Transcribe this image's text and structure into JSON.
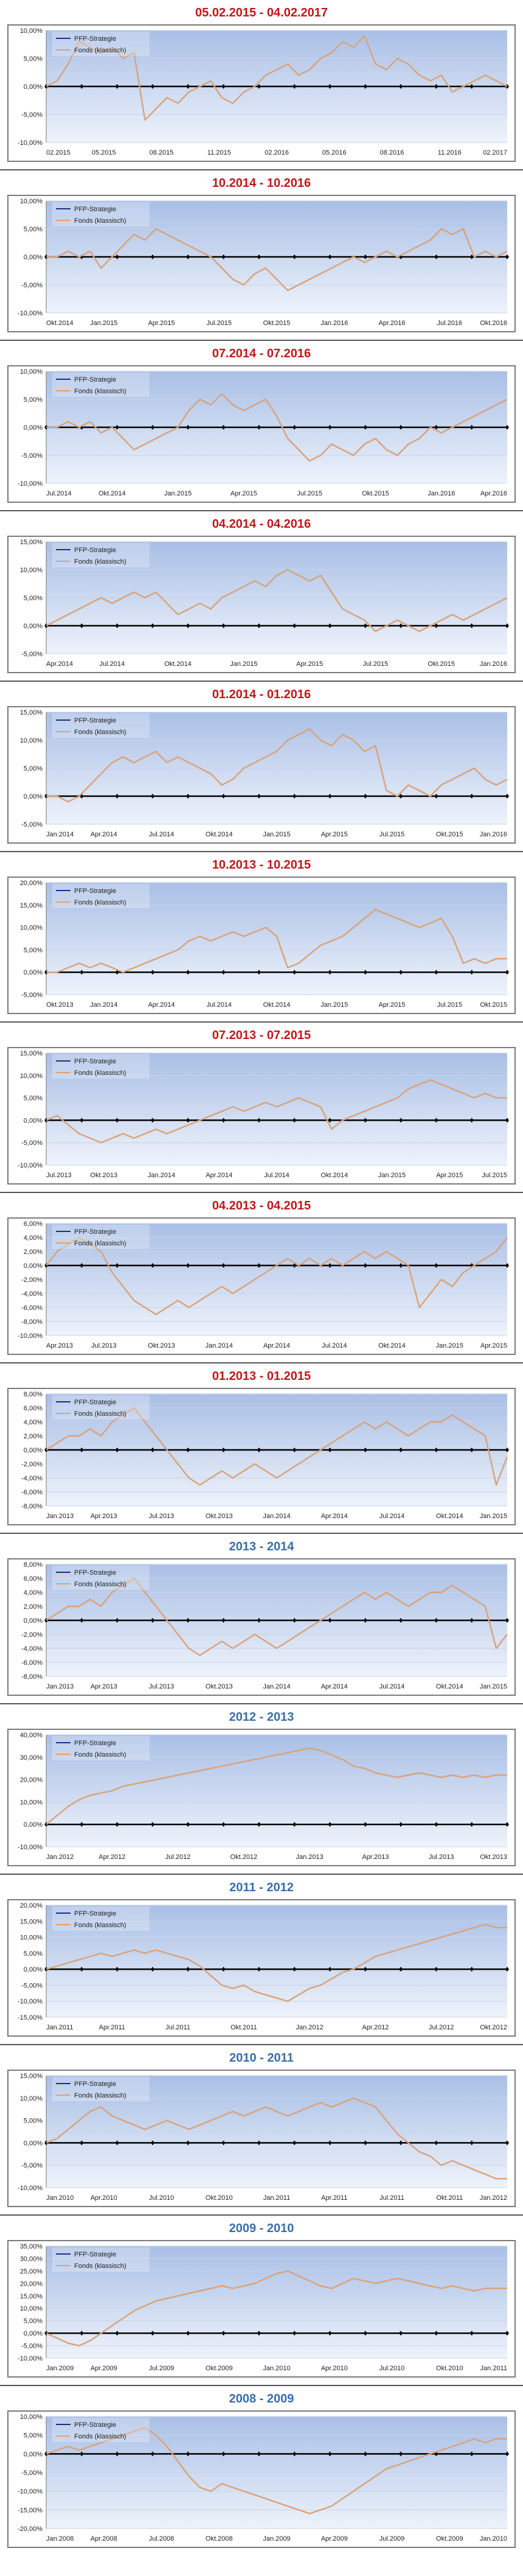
{
  "legend": {
    "series1": "PFP-Strategie",
    "series2": "Fonds (klassisch)"
  },
  "colors": {
    "line1": "#1f2f7a",
    "line2": "#d9a27a",
    "zero_axis": "#000000",
    "title_red": "#c0171b",
    "title_blue": "#3a6ea8"
  },
  "chart_data": [
    {
      "type": "line",
      "title": "05.02.2015 - 04.02.2017",
      "title_color": "red",
      "xticks": [
        "02.2015",
        "05.2015",
        "08.2015",
        "11.2015",
        "02.2016",
        "05.2016",
        "08.2016",
        "11.2016",
        "02.2017"
      ],
      "yticks": [
        "10,00%",
        "5,00%",
        "0,00%",
        "-5,00%",
        "-10,00%"
      ],
      "ylim": [
        -10,
        10
      ],
      "series": [
        {
          "name": "PFP-Strategie",
          "values": [
            0,
            1,
            4,
            8,
            7,
            6,
            7,
            5,
            6,
            -6,
            -4,
            -2,
            -3,
            -1,
            0,
            1,
            -2,
            -3,
            -1,
            0,
            2,
            3,
            4,
            2,
            3,
            5,
            6,
            8,
            7,
            9,
            4,
            3,
            5,
            4,
            2,
            1,
            2,
            -1,
            0,
            1,
            2,
            1,
            0
          ]
        }
      ]
    },
    {
      "type": "line",
      "title": "10.2014 - 10.2016",
      "title_color": "red",
      "xticks": [
        "Okt.2014",
        "Jan.2015",
        "Apr.2015",
        "Jul.2015",
        "Okt.2015",
        "Jan.2016",
        "Apr.2016",
        "Jul.2016",
        "Okt.2016"
      ],
      "yticks": [
        "10,00%",
        "5,00%",
        "0,00%",
        "-5,00%",
        "-10,00%"
      ],
      "ylim": [
        -10,
        10
      ],
      "series": [
        {
          "name": "PFP-Strategie",
          "values": [
            0,
            0,
            1,
            0,
            1,
            -2,
            0,
            2,
            4,
            3,
            5,
            4,
            3,
            2,
            1,
            0,
            -2,
            -4,
            -5,
            -3,
            -2,
            -4,
            -6,
            -5,
            -4,
            -3,
            -2,
            -1,
            0,
            -1,
            0,
            1,
            0,
            1,
            2,
            3,
            5,
            4,
            5,
            0,
            1,
            0,
            1
          ]
        }
      ]
    },
    {
      "type": "line",
      "title": "07.2014 - 07.2016",
      "title_color": "red",
      "xticks": [
        "Jul.2014",
        "Okt.2014",
        "Jan.2015",
        "Apr.2015",
        "Jul.2015",
        "Okt.2015",
        "Jan.2016",
        "Apr.2016"
      ],
      "yticks": [
        "10,00%",
        "5,00%",
        "0,00%",
        "-5,00%",
        "-10,00%"
      ],
      "ylim": [
        -10,
        10
      ],
      "series": [
        {
          "name": "PFP-Strategie",
          "values": [
            0,
            0,
            1,
            0,
            1,
            -1,
            0,
            -2,
            -4,
            -3,
            -2,
            -1,
            0,
            3,
            5,
            4,
            6,
            4,
            3,
            4,
            5,
            2,
            -2,
            -4,
            -6,
            -5,
            -3,
            -4,
            -5,
            -3,
            -2,
            -4,
            -5,
            -3,
            -2,
            0,
            -1,
            0,
            1,
            2,
            3,
            4,
            5
          ]
        }
      ]
    },
    {
      "type": "line",
      "title": "04.2014 - 04.2016",
      "title_color": "red",
      "xticks": [
        "Apr.2014",
        "Jul.2014",
        "Okt.2014",
        "Jan.2015",
        "Apr.2015",
        "Jul.2015",
        "Okt.2015",
        "Jan.2016"
      ],
      "yticks": [
        "15,00%",
        "10,00%",
        "5,00%",
        "0,00%",
        "-5,00%"
      ],
      "ylim": [
        -5,
        15
      ],
      "series": [
        {
          "name": "PFP-Strategie",
          "values": [
            0,
            1,
            2,
            3,
            4,
            5,
            4,
            5,
            6,
            5,
            6,
            4,
            2,
            3,
            4,
            3,
            5,
            6,
            7,
            8,
            7,
            9,
            10,
            9,
            8,
            9,
            6,
            3,
            2,
            1,
            -1,
            0,
            1,
            0,
            -1,
            0,
            1,
            2,
            1,
            2,
            3,
            4,
            5
          ]
        }
      ]
    },
    {
      "type": "line",
      "title": "01.2014 - 01.2016",
      "title_color": "red",
      "xticks": [
        "Jan.2014",
        "Apr.2014",
        "Jul.2014",
        "Okt.2014",
        "Jan.2015",
        "Apr.2015",
        "Jul.2015",
        "Okt.2015",
        "Jan.2016"
      ],
      "yticks": [
        "15,00%",
        "10,00%",
        "5,00%",
        "0,00%",
        "-5,00%"
      ],
      "ylim": [
        -5,
        15
      ],
      "series": [
        {
          "name": "PFP-Strategie",
          "values": [
            0,
            0,
            -1,
            0,
            2,
            4,
            6,
            7,
            6,
            7,
            8,
            6,
            7,
            6,
            5,
            4,
            2,
            3,
            5,
            6,
            7,
            8,
            10,
            11,
            12,
            10,
            9,
            11,
            10,
            8,
            9,
            1,
            0,
            2,
            1,
            0,
            2,
            3,
            4,
            5,
            3,
            2,
            3
          ]
        }
      ]
    },
    {
      "type": "line",
      "title": "10.2013 - 10.2015",
      "title_color": "red",
      "xticks": [
        "Okt.2013",
        "Jan.2014",
        "Apr.2014",
        "Jul.2014",
        "Okt.2014",
        "Jan.2015",
        "Apr.2015",
        "Jul.2015",
        "Okt.2015"
      ],
      "yticks": [
        "20,00%",
        "15,00%",
        "10,00%",
        "5,00%",
        "0,00%",
        "-5,00%"
      ],
      "ylim": [
        -5,
        20
      ],
      "series": [
        {
          "name": "PFP-Strategie",
          "values": [
            0,
            0,
            1,
            2,
            1,
            2,
            1,
            0,
            1,
            2,
            3,
            4,
            5,
            7,
            8,
            7,
            8,
            9,
            8,
            9,
            10,
            8,
            1,
            2,
            4,
            6,
            7,
            8,
            10,
            12,
            14,
            13,
            12,
            11,
            10,
            11,
            12,
            8,
            2,
            3,
            2,
            3,
            3
          ]
        }
      ]
    },
    {
      "type": "line",
      "title": "07.2013 - 07.2015",
      "title_color": "red",
      "xticks": [
        "Jul.2013",
        "Okt.2013",
        "Jan.2014",
        "Apr.2014",
        "Jul.2014",
        "Okt.2014",
        "Jan.2015",
        "Apr.2015",
        "Jul.2015"
      ],
      "yticks": [
        "15,00%",
        "10,00%",
        "5,00%",
        "0,00%",
        "-5,00%",
        "-10,00%"
      ],
      "ylim": [
        -10,
        15
      ],
      "series": [
        {
          "name": "PFP-Strategie",
          "values": [
            0,
            1,
            -1,
            -3,
            -4,
            -5,
            -4,
            -3,
            -4,
            -3,
            -2,
            -3,
            -2,
            -1,
            0,
            1,
            2,
            3,
            2,
            3,
            4,
            3,
            4,
            5,
            4,
            3,
            -2,
            0,
            1,
            2,
            3,
            4,
            5,
            7,
            8,
            9,
            8,
            7,
            6,
            5,
            6,
            5,
            5
          ]
        }
      ]
    },
    {
      "type": "line",
      "title": "04.2013 - 04.2015",
      "title_color": "red",
      "xticks": [
        "Apr.2013",
        "Jul.2013",
        "Okt.2013",
        "Jan.2014",
        "Apr.2014",
        "Jul.2014",
        "Okt.2014",
        "Jan.2015",
        "Apr.2015"
      ],
      "yticks": [
        "6,00%",
        "4,00%",
        "2,00%",
        "0,00%",
        "-2,00%",
        "-4,00%",
        "-6,00%",
        "-8,00%",
        "-10,00%"
      ],
      "ylim": [
        -10,
        6
      ],
      "series": [
        {
          "name": "PFP-Strategie",
          "values": [
            0,
            2,
            3,
            4,
            3,
            2,
            -1,
            -3,
            -5,
            -6,
            -7,
            -6,
            -5,
            -6,
            -5,
            -4,
            -3,
            -4,
            -3,
            -2,
            -1,
            0,
            1,
            0,
            1,
            0,
            1,
            0,
            1,
            2,
            1,
            2,
            1,
            0,
            -6,
            -4,
            -2,
            -3,
            -1,
            0,
            1,
            2,
            4
          ]
        }
      ]
    },
    {
      "type": "line",
      "title": "01.2013 - 01.2015",
      "title_color": "red",
      "xticks": [
        "Jan.2013",
        "Apr.2013",
        "Jul.2013",
        "Okt.2013",
        "Jan.2014",
        "Apr.2014",
        "Jul.2014",
        "Okt.2014",
        "Jan.2015"
      ],
      "yticks": [
        "8,00%",
        "6,00%",
        "4,00%",
        "2,00%",
        "0,00%",
        "-2,00%",
        "-4,00%",
        "-6,00%",
        "-8,00%"
      ],
      "ylim": [
        -8,
        8
      ],
      "series": [
        {
          "name": "PFP-Strategie",
          "values": [
            0,
            1,
            2,
            2,
            3,
            2,
            4,
            5,
            6,
            4,
            2,
            0,
            -2,
            -4,
            -5,
            -4,
            -3,
            -4,
            -3,
            -2,
            -3,
            -4,
            -3,
            -2,
            -1,
            0,
            1,
            2,
            3,
            4,
            3,
            4,
            3,
            2,
            3,
            4,
            4,
            5,
            4,
            3,
            2,
            -5,
            -1
          ]
        }
      ]
    },
    {
      "type": "line",
      "title": "2013 - 2014",
      "title_color": "blue",
      "xticks": [
        "Jan.2013",
        "Apr.2013",
        "Jul.2013",
        "Okt.2013",
        "Jan.2014",
        "Apr.2014",
        "Jul.2014",
        "Okt.2014",
        "Jan.2015"
      ],
      "yticks": [
        "8,00%",
        "6,00%",
        "4,00%",
        "2,00%",
        "0,00%",
        "-2,00%",
        "-4,00%",
        "-6,00%",
        "-8,00%"
      ],
      "ylim": [
        -8,
        8
      ],
      "series": [
        {
          "name": "PFP-Strategie",
          "values": [
            0,
            1,
            2,
            2,
            3,
            2,
            4,
            5,
            6,
            4,
            2,
            0,
            -2,
            -4,
            -5,
            -4,
            -3,
            -4,
            -3,
            -2,
            -3,
            -4,
            -3,
            -2,
            -1,
            0,
            1,
            2,
            3,
            4,
            3,
            4,
            3,
            2,
            3,
            4,
            4,
            5,
            4,
            3,
            2,
            -4,
            -2
          ]
        }
      ]
    },
    {
      "type": "line",
      "title": "2012 - 2013",
      "title_color": "blue",
      "xticks": [
        "Jan.2012",
        "Apr.2012",
        "Jul.2012",
        "Okt.2012",
        "Jan.2013",
        "Apr.2013",
        "Jul.2013",
        "Okt.2013"
      ],
      "yticks": [
        "40,00%",
        "30,00%",
        "20,00%",
        "10,00%",
        "0,00%",
        "-10,00%"
      ],
      "ylim": [
        -10,
        40
      ],
      "series": [
        {
          "name": "PFP-Strategie",
          "values": [
            0,
            4,
            8,
            11,
            13,
            14,
            15,
            17,
            18,
            19,
            20,
            21,
            22,
            23,
            24,
            25,
            26,
            27,
            28,
            29,
            30,
            31,
            32,
            33,
            34,
            33,
            31,
            29,
            26,
            25,
            23,
            22,
            21,
            22,
            23,
            22,
            21,
            22,
            21,
            22,
            21,
            22,
            22
          ]
        }
      ]
    },
    {
      "type": "line",
      "title": "2011 - 2012",
      "title_color": "blue",
      "xticks": [
        "Jan.2011",
        "Apr.2011",
        "Jul.2011",
        "Okt.2011",
        "Jan.2012",
        "Apr.2012",
        "Jul.2012",
        "Okt.2012"
      ],
      "yticks": [
        "20,00%",
        "15,00%",
        "10,00%",
        "5,00%",
        "0,00%",
        "-5,00%",
        "-10,00%",
        "-15,00%"
      ],
      "ylim": [
        -15,
        20
      ],
      "series": [
        {
          "name": "PFP-Strategie",
          "values": [
            0,
            1,
            2,
            3,
            4,
            5,
            4,
            5,
            6,
            5,
            6,
            5,
            4,
            3,
            1,
            -2,
            -5,
            -6,
            -5,
            -7,
            -8,
            -9,
            -10,
            -8,
            -6,
            -5,
            -3,
            -1,
            0,
            2,
            4,
            5,
            6,
            7,
            8,
            9,
            10,
            11,
            12,
            13,
            14,
            13,
            13
          ]
        }
      ]
    },
    {
      "type": "line",
      "title": "2010 - 2011",
      "title_color": "blue",
      "xticks": [
        "Jan.2010",
        "Apr.2010",
        "Jul.2010",
        "Okt.2010",
        "Jan.2011",
        "Apr.2011",
        "Jul.2011",
        "Okt.2011",
        "Jan.2012"
      ],
      "yticks": [
        "15,00%",
        "10,00%",
        "5,00%",
        "0,00%",
        "-5,00%",
        "-10,00%"
      ],
      "ylim": [
        -10,
        15
      ],
      "series": [
        {
          "name": "PFP-Strategie",
          "values": [
            0,
            1,
            3,
            5,
            7,
            8,
            6,
            5,
            4,
            3,
            4,
            5,
            4,
            3,
            4,
            5,
            6,
            7,
            6,
            7,
            8,
            7,
            6,
            7,
            8,
            9,
            8,
            9,
            10,
            9,
            8,
            5,
            2,
            0,
            -2,
            -3,
            -5,
            -4,
            -5,
            -6,
            -7,
            -8,
            -8
          ]
        }
      ]
    },
    {
      "type": "line",
      "title": "2009 - 2010",
      "title_color": "blue",
      "xticks": [
        "Jan.2009",
        "Apr.2009",
        "Jul.2009",
        "Okt.2009",
        "Jan.2010",
        "Apr.2010",
        "Jul.2010",
        "Okt.2010",
        "Jan.2011"
      ],
      "yticks": [
        "35,00%",
        "30,00%",
        "25,00%",
        "20,00%",
        "15,00%",
        "10,00%",
        "5,00%",
        "0,00%",
        "-5,00%",
        "-10,00%"
      ],
      "ylim": [
        -10,
        35
      ],
      "series": [
        {
          "name": "PFP-Strategie",
          "values": [
            0,
            -2,
            -4,
            -5,
            -3,
            0,
            3,
            6,
            9,
            11,
            13,
            14,
            15,
            16,
            17,
            18,
            19,
            18,
            19,
            20,
            22,
            24,
            25,
            23,
            21,
            19,
            18,
            20,
            22,
            21,
            20,
            21,
            22,
            21,
            20,
            19,
            18,
            19,
            18,
            17,
            18,
            18,
            18
          ]
        }
      ]
    },
    {
      "type": "line",
      "title": "2008 - 2009",
      "title_color": "blue",
      "xticks": [
        "Jan.2008",
        "Apr.2008",
        "Jul.2008",
        "Okt.2008",
        "Jan.2009",
        "Apr.2009",
        "Jul.2009",
        "Okt.2009",
        "Jan.2010"
      ],
      "yticks": [
        "10,00%",
        "5,00%",
        "0,00%",
        "-5,00%",
        "-10,00%",
        "-15,00%",
        "-20,00%"
      ],
      "ylim": [
        -20,
        10
      ],
      "series": [
        {
          "name": "PFP-Strategie",
          "values": [
            0,
            1,
            2,
            1,
            2,
            3,
            4,
            5,
            6,
            7,
            5,
            2,
            -2,
            -6,
            -9,
            -10,
            -8,
            -9,
            -10,
            -11,
            -12,
            -13,
            -14,
            -15,
            -16,
            -15,
            -14,
            -12,
            -10,
            -8,
            -6,
            -4,
            -3,
            -2,
            -1,
            0,
            1,
            2,
            3,
            4,
            3,
            4,
            4
          ]
        }
      ]
    }
  ]
}
